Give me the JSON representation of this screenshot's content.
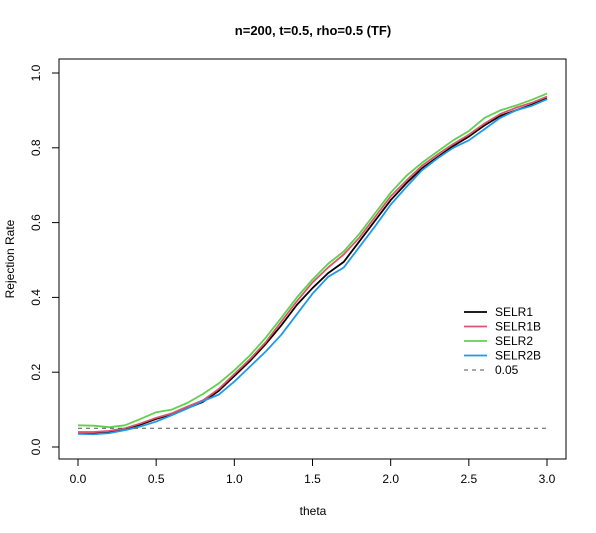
{
  "chart_data": {
    "type": "line",
    "title": "n=200, t=0.5, rho=0.5 (TF)",
    "xlabel": "theta",
    "ylabel": "Rejection Rate",
    "xlim": [
      0,
      3
    ],
    "ylim": [
      0,
      1
    ],
    "xticks": [
      0,
      0.5,
      1,
      1.5,
      2,
      2.5,
      3
    ],
    "xtick_labels": [
      "0.0",
      "0.5",
      "1.0",
      "1.5",
      "2.0",
      "2.5",
      "3.0"
    ],
    "yticks": [
      0,
      0.2,
      0.4,
      0.6,
      0.8,
      1.0
    ],
    "ytick_labels": [
      "0.0",
      "0.2",
      "0.4",
      "0.6",
      "0.8",
      "1.0"
    ],
    "grid": false,
    "legend_position": "right",
    "x": [
      0.0,
      0.1,
      0.2,
      0.3,
      0.4,
      0.5,
      0.6,
      0.7,
      0.8,
      0.9,
      1.0,
      1.1,
      1.2,
      1.3,
      1.4,
      1.5,
      1.6,
      1.7,
      1.8,
      1.9,
      2.0,
      2.1,
      2.2,
      2.3,
      2.4,
      2.5,
      2.6,
      2.7,
      2.8,
      2.9,
      3.0
    ],
    "series": [
      {
        "name": "SELR1",
        "color": "#000000",
        "dash": "solid",
        "values": [
          0.037,
          0.037,
          0.04,
          0.048,
          0.06,
          0.075,
          0.088,
          0.104,
          0.121,
          0.15,
          0.19,
          0.23,
          0.275,
          0.325,
          0.38,
          0.425,
          0.465,
          0.495,
          0.55,
          0.605,
          0.66,
          0.705,
          0.745,
          0.775,
          0.805,
          0.83,
          0.86,
          0.885,
          0.9,
          0.915,
          0.932
        ]
      },
      {
        "name": "SELR1B",
        "color": "#df536b",
        "dash": "solid",
        "values": [
          0.04,
          0.04,
          0.043,
          0.05,
          0.063,
          0.078,
          0.09,
          0.108,
          0.125,
          0.155,
          0.195,
          0.235,
          0.28,
          0.335,
          0.39,
          0.44,
          0.48,
          0.515,
          0.56,
          0.615,
          0.67,
          0.712,
          0.752,
          0.782,
          0.81,
          0.835,
          0.865,
          0.89,
          0.907,
          0.92,
          0.937
        ]
      },
      {
        "name": "SELR2",
        "color": "#61d04f",
        "dash": "solid",
        "values": [
          0.058,
          0.057,
          0.053,
          0.058,
          0.075,
          0.093,
          0.1,
          0.118,
          0.142,
          0.17,
          0.205,
          0.245,
          0.292,
          0.345,
          0.4,
          0.448,
          0.49,
          0.523,
          0.57,
          0.625,
          0.68,
          0.725,
          0.76,
          0.79,
          0.82,
          0.845,
          0.88,
          0.9,
          0.913,
          0.928,
          0.945
        ]
      },
      {
        "name": "SELR2B",
        "color": "#2297e6",
        "dash": "solid",
        "values": [
          0.035,
          0.034,
          0.037,
          0.045,
          0.055,
          0.068,
          0.085,
          0.103,
          0.123,
          0.14,
          0.175,
          0.215,
          0.255,
          0.3,
          0.355,
          0.41,
          0.455,
          0.48,
          0.535,
          0.59,
          0.648,
          0.695,
          0.74,
          0.772,
          0.8,
          0.82,
          0.85,
          0.88,
          0.9,
          0.912,
          0.93
        ]
      },
      {
        "name": "0.05",
        "color": "#555555",
        "dash": "dashed",
        "values": [
          0.05,
          0.05,
          0.05,
          0.05,
          0.05,
          0.05,
          0.05,
          0.05,
          0.05,
          0.05,
          0.05,
          0.05,
          0.05,
          0.05,
          0.05,
          0.05,
          0.05,
          0.05,
          0.05,
          0.05,
          0.05,
          0.05,
          0.05,
          0.05,
          0.05,
          0.05,
          0.05,
          0.05,
          0.05,
          0.05,
          0.05
        ]
      }
    ]
  }
}
